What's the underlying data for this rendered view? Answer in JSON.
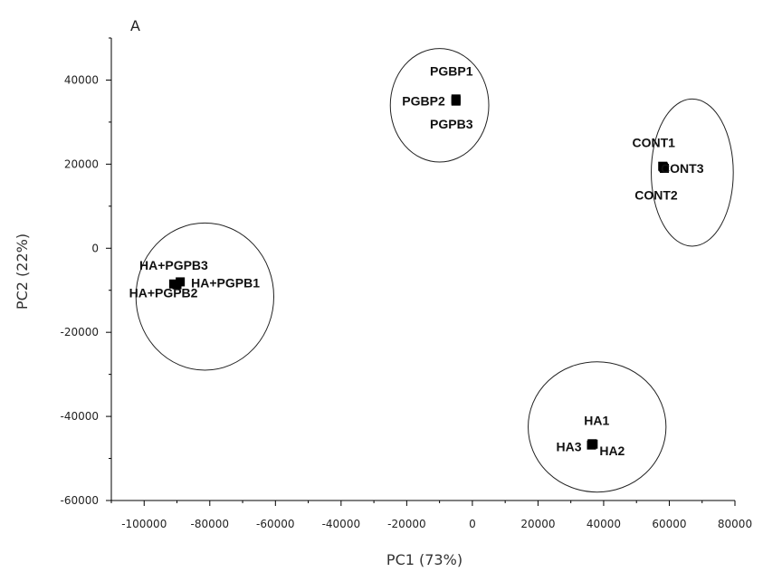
{
  "chart_data": {
    "type": "scatter",
    "title": "",
    "panel_label": "A",
    "xlabel": "PC1 (73%)",
    "ylabel": "PC2 (22%)",
    "xlim": [
      -110000,
      80000
    ],
    "ylim": [
      -60000,
      50000
    ],
    "x_ticks": [
      -100000,
      -80000,
      -60000,
      -40000,
      -20000,
      0,
      20000,
      40000,
      60000,
      80000
    ],
    "y_ticks": [
      -60000,
      -40000,
      -20000,
      0,
      20000,
      40000
    ],
    "grid": false,
    "legend": "none",
    "points": [
      {
        "label": "PGBP1",
        "x": -5000,
        "y": 35500
      },
      {
        "label": "PGBP2",
        "x": -5000,
        "y": 35000
      },
      {
        "label": "PGPB3",
        "x": -5000,
        "y": 35200
      },
      {
        "label": "CONT1",
        "x": 58000,
        "y": 19500
      },
      {
        "label": "CONT3",
        "x": 58500,
        "y": 19000
      },
      {
        "label": "CONT2",
        "x": 58200,
        "y": 19300
      },
      {
        "label": "HA+PGPB3",
        "x": -91000,
        "y": -8500
      },
      {
        "label": "HA+PGPB1",
        "x": -89000,
        "y": -8000
      },
      {
        "label": "HA+PGPB2",
        "x": -90000,
        "y": -8700
      },
      {
        "label": "HA1",
        "x": 36500,
        "y": -46500
      },
      {
        "label": "HA3",
        "x": 36300,
        "y": -46800
      },
      {
        "label": "HA2",
        "x": 36800,
        "y": -46600
      }
    ],
    "clusters": [
      {
        "name": "PGPB",
        "cx": -10000,
        "cy": 34000,
        "rx": 15000,
        "ry": 13500
      },
      {
        "name": "CONT",
        "cx": 67000,
        "cy": 18000,
        "rx": 12500,
        "ry": 17500
      },
      {
        "name": "HA+PGPB",
        "cx": -81500,
        "cy": -11500,
        "rx": 21000,
        "ry": 17500
      },
      {
        "name": "HA",
        "cx": 38000,
        "cy": -42500,
        "rx": 21000,
        "ry": 15500
      }
    ]
  }
}
